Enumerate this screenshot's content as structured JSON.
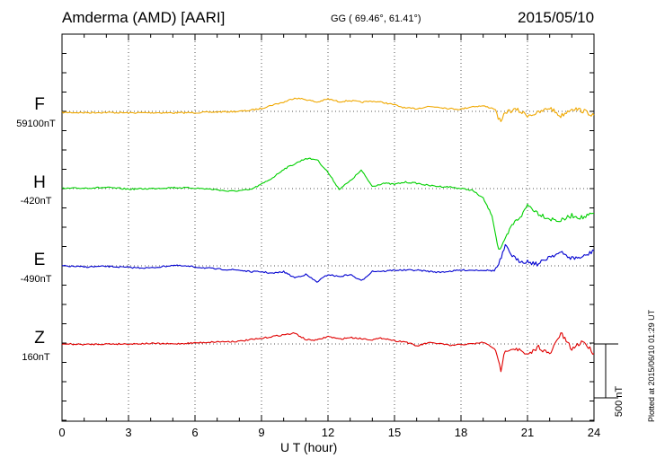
{
  "header": {
    "station": "Amderma (AMD)  [AARI]",
    "coordinates": "GG ( 69.46°,  61.41°)",
    "date": "2015/05/10"
  },
  "colors": {
    "F": "#f0a800",
    "H": "#00d000",
    "E": "#0000d0",
    "Z": "#e00000"
  },
  "scale_label": "500 nT",
  "plotted_note": "Plotted at 2015/06/10 01:29 UT",
  "chart_data": {
    "type": "line",
    "xlabel": "U T (hour)",
    "xlim": [
      0,
      24
    ],
    "x_ticks": [
      "0",
      "3",
      "6",
      "9",
      "12",
      "15",
      "18",
      "21",
      "24"
    ],
    "grid": true,
    "scale_bar_nT": 500,
    "series": [
      {
        "name": "F",
        "baseline_label": "59100nT",
        "x": [
          0,
          1,
          2,
          3,
          4,
          5,
          6,
          7,
          8,
          8.5,
          9,
          9.5,
          10,
          10.5,
          11,
          11.5,
          12,
          12.5,
          13,
          13.5,
          14,
          14.5,
          15,
          15.5,
          16,
          16.5,
          17,
          17.5,
          18,
          18.5,
          19,
          19.5,
          19.8,
          20,
          20.5,
          21,
          21.5,
          22,
          22.5,
          23,
          23.5,
          24
        ],
        "y": [
          -10,
          -12,
          -10,
          -14,
          -12,
          -14,
          -12,
          -6,
          0,
          10,
          28,
          60,
          85,
          125,
          110,
          85,
          115,
          90,
          100,
          85,
          95,
          82,
          60,
          30,
          25,
          45,
          40,
          25,
          20,
          45,
          50,
          25,
          -110,
          -5,
          15,
          -35,
          -15,
          35,
          -45,
          30,
          5,
          -35
        ]
      },
      {
        "name": "H",
        "baseline_label": "-420nT",
        "x": [
          0,
          1,
          2,
          3,
          4,
          5,
          6,
          7,
          7.5,
          8,
          8.5,
          9,
          9.5,
          10,
          10.5,
          11,
          11.5,
          12,
          12.5,
          13,
          13.5,
          14,
          14.5,
          15,
          15.5,
          16,
          16.5,
          17,
          17.5,
          18,
          18.5,
          19,
          19.4,
          19.7,
          19.9,
          20.3,
          20.8,
          21,
          21.5,
          22,
          22.5,
          23,
          23.5,
          24
        ],
        "y": [
          0,
          5,
          10,
          -5,
          0,
          10,
          5,
          -10,
          -25,
          -20,
          -10,
          40,
          100,
          180,
          230,
          280,
          270,
          150,
          -5,
          70,
          170,
          20,
          50,
          40,
          60,
          50,
          30,
          20,
          15,
          0,
          -15,
          -90,
          -250,
          -570,
          -520,
          -340,
          -230,
          -150,
          -230,
          -280,
          -300,
          -250,
          -270,
          -230
        ]
      },
      {
        "name": "E",
        "baseline_label": "-490nT",
        "x": [
          0,
          1,
          2,
          3,
          4,
          5,
          6,
          7,
          8,
          8.5,
          9,
          9.5,
          10,
          10.5,
          11,
          11.5,
          12,
          12.5,
          13,
          13.5,
          14,
          14.5,
          15,
          15.5,
          16,
          16.5,
          17,
          17.5,
          18,
          18.5,
          19,
          19.5,
          19.7,
          20,
          20.5,
          21,
          21.5,
          22,
          22.5,
          23,
          23.5,
          24
        ],
        "y": [
          0,
          -10,
          -5,
          -15,
          -20,
          5,
          -10,
          -30,
          -40,
          -55,
          -55,
          -70,
          -55,
          -110,
          -80,
          -150,
          -80,
          -100,
          -80,
          -140,
          -50,
          -50,
          -40,
          -40,
          -40,
          -50,
          -60,
          -50,
          -40,
          -40,
          -40,
          -45,
          10,
          180,
          50,
          40,
          15,
          90,
          120,
          70,
          80,
          140
        ]
      },
      {
        "name": "Z",
        "baseline_label": "160nT",
        "x": [
          0,
          1,
          2,
          3,
          4,
          5,
          6,
          7,
          8,
          8.5,
          9,
          9.5,
          10,
          10.5,
          11,
          11.5,
          12,
          12.5,
          13,
          13.5,
          14,
          14.5,
          15,
          15.5,
          16,
          16.5,
          17,
          17.5,
          18,
          18.5,
          19,
          19.5,
          19.8,
          20,
          20.5,
          21,
          21.5,
          22,
          22.5,
          23,
          23.5,
          24
        ],
        "y": [
          0,
          -5,
          0,
          0,
          5,
          0,
          10,
          20,
          25,
          40,
          50,
          70,
          85,
          100,
          40,
          35,
          70,
          45,
          60,
          50,
          40,
          55,
          30,
          20,
          -20,
          10,
          5,
          -15,
          -5,
          0,
          15,
          -40,
          -240,
          -50,
          -40,
          -110,
          -25,
          -100,
          100,
          -50,
          30,
          -90
        ]
      }
    ]
  }
}
